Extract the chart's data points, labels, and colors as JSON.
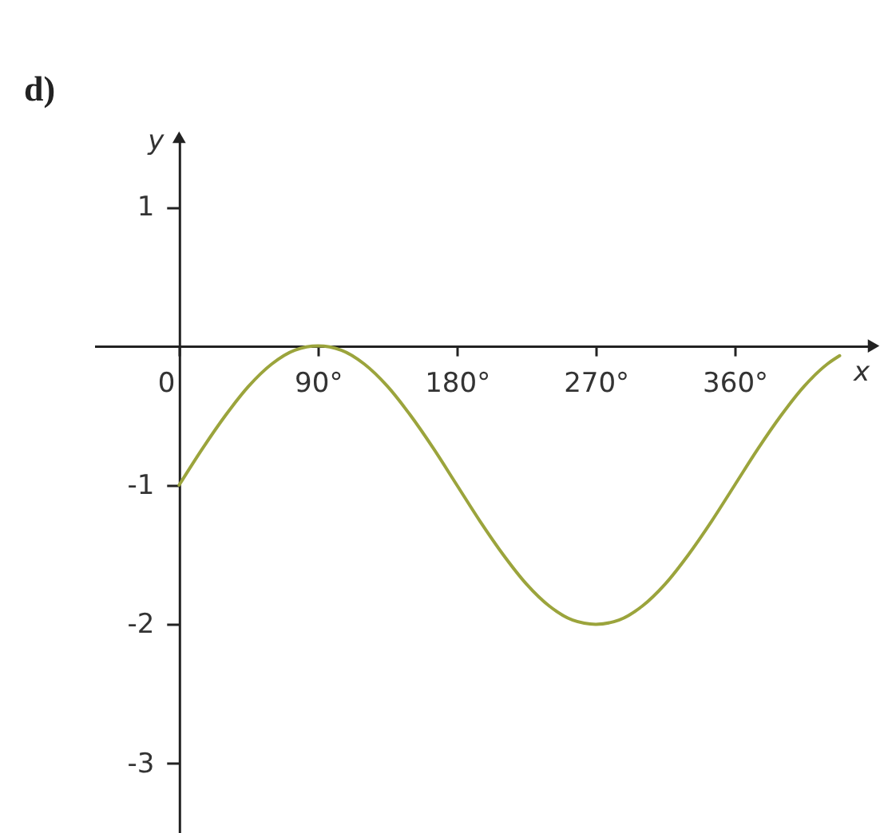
{
  "chart_data": {
    "type": "line",
    "title": "d)",
    "xlabel": "x",
    "ylabel": "y",
    "x": [
      0,
      15,
      30,
      45,
      60,
      75,
      90,
      105,
      120,
      135,
      150,
      165,
      180,
      195,
      210,
      225,
      240,
      255,
      270,
      285,
      300,
      315,
      330,
      345,
      360,
      375,
      390,
      405,
      420,
      428
    ],
    "values": [
      -1,
      -0.74,
      -0.5,
      -0.29,
      -0.13,
      -0.03,
      0,
      -0.03,
      -0.13,
      -0.29,
      -0.5,
      -0.74,
      -1,
      -1.26,
      -1.5,
      -1.71,
      -1.87,
      -1.97,
      -2,
      -1.97,
      -1.87,
      -1.71,
      -1.5,
      -1.26,
      -1,
      -0.74,
      -0.5,
      -0.29,
      -0.13,
      -0.07
    ],
    "color": "#9ba43c",
    "xlim": [
      -55,
      450
    ],
    "ylim": [
      -3.5,
      1.5
    ],
    "xticks": [
      0,
      {
        "value": 90,
        "label": "90°"
      },
      {
        "value": 180,
        "label": "180°"
      },
      {
        "value": 270,
        "label": "270°"
      },
      {
        "value": 360,
        "label": "360°"
      }
    ],
    "yticks": [
      1,
      -1,
      -2,
      -3
    ],
    "grid": false
  }
}
